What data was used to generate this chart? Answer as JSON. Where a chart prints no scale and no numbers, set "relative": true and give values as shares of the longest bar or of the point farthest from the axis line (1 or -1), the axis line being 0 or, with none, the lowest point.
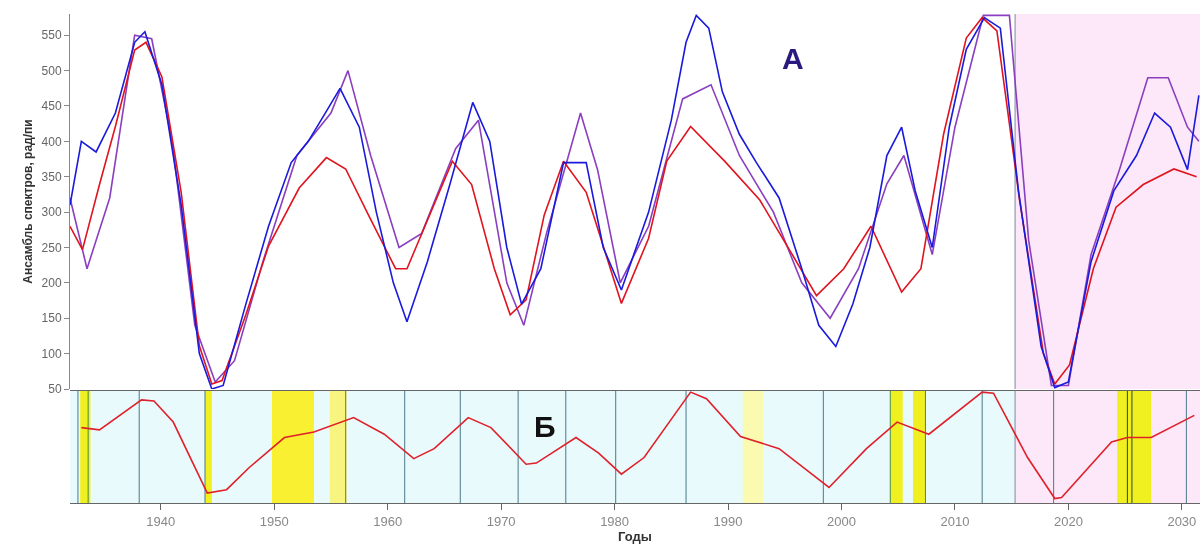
{
  "chart_data": [
    {
      "type": "line",
      "title": "А",
      "ylabel": "Ансамбль спектров, рад/пи",
      "xlim": [
        1932.0,
        2031.6
      ],
      "ylim": [
        50,
        580
      ],
      "yticks": [
        50,
        100,
        150,
        200,
        250,
        300,
        350,
        400,
        450,
        500,
        550
      ],
      "tick_labels": "y",
      "series": [
        {
          "color": "#8a3fc0",
          "x": [
            1932.0,
            1933.5,
            1935.5,
            1937.7,
            1939.2,
            1941,
            1943,
            1944.8,
            1946.5,
            1949,
            1952,
            1955,
            1956.5,
            1958.5,
            1961,
            1963,
            1966,
            1968,
            1970.5,
            1972,
            1974,
            1977,
            1978.5,
            1980.5,
            1983,
            1986,
            1988.5,
            1991,
            1994,
            1996.5,
            1999,
            2001.5,
            2004,
            2005.5,
            2008,
            2010,
            2012.5,
            2014.8,
            2016.5,
            2018.5,
            2020,
            2022,
            2024.5,
            2027,
            2028.8,
            2030.5,
            2031.5
          ],
          "values": [
            320,
            220,
            320,
            550,
            545,
            400,
            140,
            60,
            90,
            230,
            380,
            440,
            500,
            380,
            250,
            270,
            390,
            430,
            200,
            140,
            270,
            440,
            360,
            200,
            280,
            460,
            480,
            380,
            300,
            200,
            150,
            220,
            340,
            380,
            240,
            420,
            578,
            578,
            260,
            55,
            55,
            240,
            360,
            490,
            490,
            420,
            400
          ]
        },
        {
          "color": "#e0141e",
          "x": [
            1932.0,
            1933.1,
            1934.6,
            1936.0,
            1937.7,
            1938.7,
            1940.1,
            1941.8,
            1943.4,
            1944.5,
            1945.4,
            1947.5,
            1949.5,
            1952.2,
            1954.6,
            1956.3,
            1958.3,
            1960.7,
            1961.7,
            1963.7,
            1965.7,
            1967.4,
            1969.4,
            1970.8,
            1972.2,
            1973.8,
            1975.5,
            1977.5,
            1980.6,
            1983.0,
            1984.6,
            1986.7,
            1989.7,
            1992.8,
            1995.4,
            1997.8,
            2000.2,
            2002.6,
            2005.3,
            2007.0,
            2009.0,
            2011.0,
            2012.4,
            2013.7,
            2015.7,
            2017.8,
            2018.8,
            2020.1,
            2022.2,
            2024.2,
            2026.6,
            2029.3,
            2031.3
          ],
          "values": [
            280,
            247,
            339,
            421,
            529,
            540,
            491,
            328,
            111,
            57,
            62,
            155,
            252,
            334,
            377,
            361,
            296,
            220,
            220,
            296,
            372,
            339,
            220,
            155,
            176,
            296,
            372,
            328,
            171,
            263,
            372,
            421,
            372,
            317,
            247,
            182,
            220,
            280,
            187,
            220,
            410,
            546,
            575,
            556,
            317,
            100,
            57,
            84,
            220,
            307,
            339,
            361,
            350
          ]
        },
        {
          "color": "#1a1adc",
          "x": [
            1932.0,
            1933.0,
            1934.3,
            1936,
            1937.7,
            1938.6,
            1940.1,
            1941.8,
            1943.4,
            1944.5,
            1945.5,
            1947.5,
            1949.5,
            1951.5,
            1953,
            1954.5,
            1955.8,
            1957.5,
            1959,
            1960.5,
            1961.7,
            1963.5,
            1965.5,
            1967.5,
            1969,
            1970.5,
            1971.8,
            1973.5,
            1975.5,
            1977.5,
            1979,
            1980.6,
            1983,
            1985,
            1986.3,
            1987.2,
            1988.3,
            1989.5,
            1991,
            1992.5,
            1994.5,
            1996.5,
            1998,
            1999.5,
            2001,
            2002.5,
            2004,
            2005.3,
            2006.5,
            2008,
            2009.5,
            2011,
            2012.6,
            2014,
            2015.6,
            2017.6,
            2018.8,
            2020,
            2022,
            2024,
            2026,
            2027.6,
            2029,
            2030.5,
            2031.5
          ],
          "values": [
            310,
            400,
            385,
            440,
            540,
            555,
            480,
            310,
            100,
            50,
            55,
            170,
            280,
            370,
            400,
            440,
            475,
            420,
            300,
            200,
            145,
            230,
            340,
            455,
            400,
            250,
            170,
            220,
            370,
            370,
            250,
            190,
            300,
            430,
            540,
            578,
            560,
            470,
            410,
            370,
            320,
            220,
            140,
            110,
            170,
            250,
            380,
            420,
            330,
            250,
            420,
            530,
            575,
            560,
            330,
            110,
            52,
            60,
            230,
            330,
            380,
            440,
            420,
            360,
            465
          ]
        }
      ],
      "ref_lines": [
        {
          "axis": "x",
          "value": 2015.3,
          "color": "#7a8a9a"
        }
      ],
      "bands": [
        {
          "axis": "x",
          "from": 2015.3,
          "to": 2031.6,
          "color": "#fce8f8"
        }
      ]
    },
    {
      "type": "line",
      "title": "Б",
      "xlabel": "Годы",
      "relative": true,
      "xlim": [
        1932.0,
        2031.6
      ],
      "xticks": [
        1940,
        1950,
        1960,
        1970,
        1980,
        1990,
        2000,
        2010,
        2020,
        2030
      ],
      "tick_labels": "x",
      "series": [
        {
          "color": "#e0202a",
          "x": [
            1933.0,
            1934.6,
            1938.3,
            1939.4,
            1941.1,
            1944.1,
            1945.8,
            1947.8,
            1950.9,
            1953.5,
            1957.0,
            1959.7,
            1962.3,
            1964.1,
            1967.1,
            1969.1,
            1972.2,
            1973.1,
            1976.6,
            1978.6,
            1980.6,
            1982.6,
            1986.7,
            1988.1,
            1991.1,
            1994.5,
            1998.9,
            2002.2,
            2004.9,
            2007.7,
            2012.4,
            2013.4,
            2016.4,
            2018.8,
            2019.4,
            2023.8,
            2025.2,
            2027.3,
            2031.1
          ],
          "values": [
            0.68,
            0.66,
            0.93,
            0.92,
            0.73,
            0.09,
            0.12,
            0.32,
            0.59,
            0.64,
            0.77,
            0.62,
            0.4,
            0.49,
            0.77,
            0.68,
            0.35,
            0.36,
            0.59,
            0.45,
            0.26,
            0.41,
            1.0,
            0.94,
            0.6,
            0.49,
            0.14,
            0.49,
            0.73,
            0.62,
            1.0,
            0.99,
            0.41,
            0.04,
            0.05,
            0.55,
            0.59,
            0.59,
            0.79
          ]
        }
      ],
      "ref_lines": [
        {
          "axis": "x",
          "value": 1932.7,
          "color": "#4a7a8a"
        },
        {
          "axis": "x",
          "value": 1933.6,
          "color": "#4a8a4a"
        },
        {
          "axis": "x",
          "value": 1938.1,
          "color": "#4a7a8a"
        },
        {
          "axis": "x",
          "value": 1943.9,
          "color": "#4a7a8a"
        },
        {
          "axis": "x",
          "value": 1956.3,
          "color": "#4a7a8a"
        },
        {
          "axis": "x",
          "value": 1961.5,
          "color": "#4a7a8a"
        },
        {
          "axis": "x",
          "value": 1966.4,
          "color": "#4a7a8a"
        },
        {
          "axis": "x",
          "value": 1971.5,
          "color": "#4a7a8a"
        },
        {
          "axis": "x",
          "value": 1975.7,
          "color": "#4a7a8a"
        },
        {
          "axis": "x",
          "value": 1980.1,
          "color": "#4a7a8a"
        },
        {
          "axis": "x",
          "value": 1986.3,
          "color": "#4a7a8a"
        },
        {
          "axis": "x",
          "value": 1998.4,
          "color": "#4a7a8a"
        },
        {
          "axis": "x",
          "value": 2004.3,
          "color": "#4a8a4a"
        },
        {
          "axis": "x",
          "value": 2007.4,
          "color": "#4a8a4a"
        },
        {
          "axis": "x",
          "value": 2012.4,
          "color": "#4a7a8a"
        },
        {
          "axis": "x",
          "value": 2015.3,
          "color": "#7a8a9a"
        },
        {
          "axis": "x",
          "value": 2018.7,
          "color": "#4a7a8a"
        },
        {
          "axis": "x",
          "value": 2025.2,
          "color": "#2a4a2a"
        },
        {
          "axis": "x",
          "value": 2025.6,
          "color": "#2a4a2a"
        },
        {
          "axis": "x",
          "value": 2030.4,
          "color": "#4a7a8a"
        }
      ],
      "bands": [
        {
          "axis": "x",
          "from": 1932.0,
          "to": 2015.3,
          "color": "#e8fafc"
        },
        {
          "axis": "x",
          "from": 2015.3,
          "to": 2031.6,
          "color": "#fce8f8"
        },
        {
          "axis": "x",
          "from": 1932.9,
          "to": 1933.8,
          "color": "#f0f020"
        },
        {
          "axis": "x",
          "from": 1943.9,
          "to": 1944.5,
          "color": "#f0f020"
        },
        {
          "axis": "x",
          "from": 1949.8,
          "to": 1953.5,
          "color": "#f8f030"
        },
        {
          "axis": "x",
          "from": 1954.9,
          "to": 1956.4,
          "color": "#f8f480"
        },
        {
          "axis": "x",
          "from": 1991.3,
          "to": 1993.1,
          "color": "#fafab0"
        },
        {
          "axis": "x",
          "from": 2004.3,
          "to": 2005.4,
          "color": "#f0f020"
        },
        {
          "axis": "x",
          "from": 2006.3,
          "to": 2007.4,
          "color": "#f0f020"
        },
        {
          "axis": "x",
          "from": 2024.3,
          "to": 2027.3,
          "color": "#f0f020"
        }
      ]
    }
  ]
}
